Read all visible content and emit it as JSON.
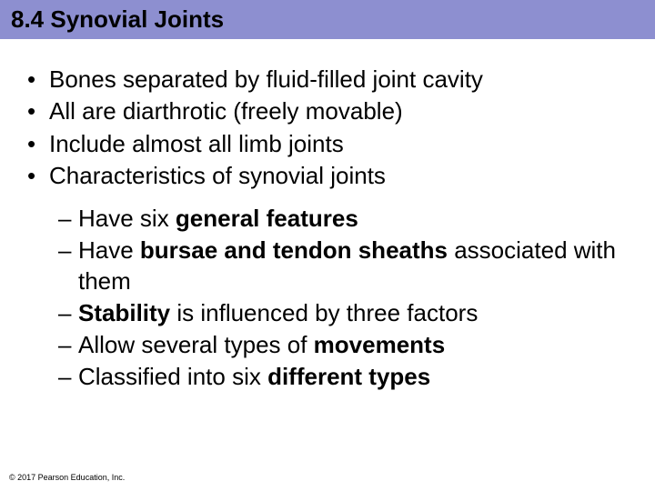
{
  "header": {
    "title": "8.4  Synovial Joints",
    "bg_color": "#8d8fd0",
    "text_color": "#000000",
    "fontsize": 26
  },
  "body": {
    "fontsize": 26,
    "text_color": "#000000",
    "bullets_level1": [
      "Bones separated by fluid-filled joint cavity",
      "All are diarthrotic (freely movable)",
      "Include almost all limb joints",
      "Characteristics of synovial joints"
    ],
    "bullets_level2": [
      {
        "pre": "Have six ",
        "bold": "general features",
        "post": ""
      },
      {
        "pre": "Have ",
        "bold": "bursae and tendon sheaths",
        "post": " associated with them"
      },
      {
        "pre": "",
        "bold": "Stability",
        "post": " is influenced by three factors"
      },
      {
        "pre": "Allow several types of ",
        "bold": "movements",
        "post": ""
      },
      {
        "pre": "Classified into six ",
        "bold": "different types",
        "post": ""
      }
    ]
  },
  "footer": {
    "text": "© 2017 Pearson Education, Inc.",
    "fontsize": 9,
    "text_color": "#000000"
  }
}
